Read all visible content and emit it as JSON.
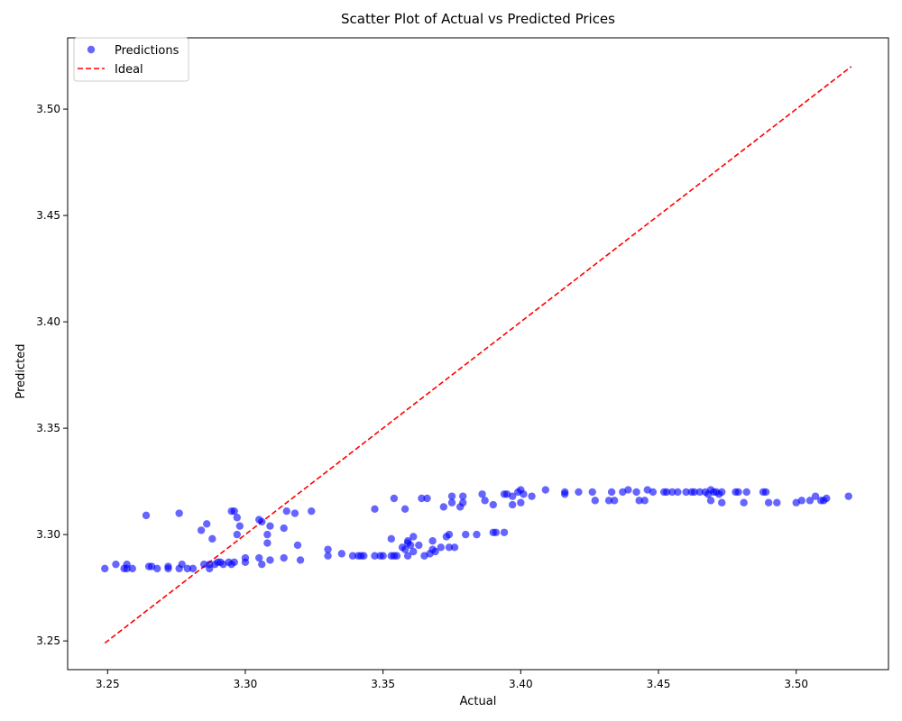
{
  "chart_data": {
    "type": "scatter",
    "title": "Scatter Plot of Actual vs Predicted Prices",
    "xlabel": "Actual",
    "ylabel": "Predicted",
    "xlim": [
      3.2355,
      3.5335
    ],
    "ylim": [
      3.2365,
      3.5335
    ],
    "xticks": [
      3.25,
      3.3,
      3.35,
      3.4,
      3.45,
      3.5
    ],
    "yticks": [
      3.25,
      3.3,
      3.35,
      3.4,
      3.45,
      3.5
    ],
    "grid": false,
    "legend_position": "top-left",
    "series": [
      {
        "name": "Predictions",
        "kind": "scatter",
        "color": "#0000ff",
        "points": [
          [
            3.249,
            3.284
          ],
          [
            3.253,
            3.286
          ],
          [
            3.256,
            3.284
          ],
          [
            3.257,
            3.284
          ],
          [
            3.257,
            3.286
          ],
          [
            3.259,
            3.284
          ],
          [
            3.264,
            3.309
          ],
          [
            3.265,
            3.285
          ],
          [
            3.266,
            3.285
          ],
          [
            3.268,
            3.284
          ],
          [
            3.272,
            3.285
          ],
          [
            3.272,
            3.284
          ],
          [
            3.276,
            3.31
          ],
          [
            3.276,
            3.284
          ],
          [
            3.277,
            3.286
          ],
          [
            3.279,
            3.284
          ],
          [
            3.281,
            3.284
          ],
          [
            3.284,
            3.302
          ],
          [
            3.285,
            3.286
          ],
          [
            3.286,
            3.305
          ],
          [
            3.287,
            3.286
          ],
          [
            3.287,
            3.284
          ],
          [
            3.288,
            3.298
          ],
          [
            3.289,
            3.286
          ],
          [
            3.29,
            3.287
          ],
          [
            3.291,
            3.287
          ],
          [
            3.292,
            3.286
          ],
          [
            3.294,
            3.287
          ],
          [
            3.295,
            3.311
          ],
          [
            3.295,
            3.286
          ],
          [
            3.296,
            3.311
          ],
          [
            3.296,
            3.287
          ],
          [
            3.297,
            3.308
          ],
          [
            3.297,
            3.3
          ],
          [
            3.298,
            3.304
          ],
          [
            3.3,
            3.289
          ],
          [
            3.3,
            3.287
          ],
          [
            3.305,
            3.307
          ],
          [
            3.305,
            3.289
          ],
          [
            3.306,
            3.306
          ],
          [
            3.306,
            3.286
          ],
          [
            3.308,
            3.3
          ],
          [
            3.308,
            3.296
          ],
          [
            3.309,
            3.304
          ],
          [
            3.309,
            3.288
          ],
          [
            3.314,
            3.303
          ],
          [
            3.314,
            3.289
          ],
          [
            3.315,
            3.311
          ],
          [
            3.318,
            3.31
          ],
          [
            3.319,
            3.295
          ],
          [
            3.32,
            3.288
          ],
          [
            3.324,
            3.311
          ],
          [
            3.33,
            3.29
          ],
          [
            3.33,
            3.293
          ],
          [
            3.335,
            3.291
          ],
          [
            3.339,
            3.29
          ],
          [
            3.341,
            3.29
          ],
          [
            3.342,
            3.29
          ],
          [
            3.343,
            3.29
          ],
          [
            3.347,
            3.29
          ],
          [
            3.347,
            3.312
          ],
          [
            3.349,
            3.29
          ],
          [
            3.35,
            3.29
          ],
          [
            3.353,
            3.29
          ],
          [
            3.353,
            3.298
          ],
          [
            3.354,
            3.29
          ],
          [
            3.354,
            3.317
          ],
          [
            3.355,
            3.29
          ],
          [
            3.357,
            3.294
          ],
          [
            3.358,
            3.293
          ],
          [
            3.358,
            3.312
          ],
          [
            3.359,
            3.296
          ],
          [
            3.359,
            3.29
          ],
          [
            3.359,
            3.297
          ],
          [
            3.36,
            3.295
          ],
          [
            3.361,
            3.299
          ],
          [
            3.361,
            3.292
          ],
          [
            3.363,
            3.295
          ],
          [
            3.364,
            3.317
          ],
          [
            3.365,
            3.29
          ],
          [
            3.366,
            3.317
          ],
          [
            3.367,
            3.291
          ],
          [
            3.368,
            3.297
          ],
          [
            3.368,
            3.293
          ],
          [
            3.369,
            3.292
          ],
          [
            3.371,
            3.294
          ],
          [
            3.372,
            3.313
          ],
          [
            3.373,
            3.299
          ],
          [
            3.374,
            3.3
          ],
          [
            3.374,
            3.294
          ],
          [
            3.375,
            3.318
          ],
          [
            3.375,
            3.315
          ],
          [
            3.376,
            3.294
          ],
          [
            3.378,
            3.313
          ],
          [
            3.379,
            3.318
          ],
          [
            3.379,
            3.315
          ],
          [
            3.38,
            3.3
          ],
          [
            3.384,
            3.3
          ],
          [
            3.386,
            3.319
          ],
          [
            3.387,
            3.316
          ],
          [
            3.39,
            3.314
          ],
          [
            3.39,
            3.301
          ],
          [
            3.391,
            3.301
          ],
          [
            3.394,
            3.319
          ],
          [
            3.394,
            3.301
          ],
          [
            3.395,
            3.319
          ],
          [
            3.397,
            3.314
          ],
          [
            3.397,
            3.318
          ],
          [
            3.399,
            3.32
          ],
          [
            3.4,
            3.321
          ],
          [
            3.4,
            3.315
          ],
          [
            3.401,
            3.319
          ],
          [
            3.404,
            3.318
          ],
          [
            3.409,
            3.321
          ],
          [
            3.416,
            3.32
          ],
          [
            3.416,
            3.319
          ],
          [
            3.421,
            3.32
          ],
          [
            3.426,
            3.32
          ],
          [
            3.427,
            3.316
          ],
          [
            3.432,
            3.316
          ],
          [
            3.433,
            3.32
          ],
          [
            3.434,
            3.316
          ],
          [
            3.437,
            3.32
          ],
          [
            3.439,
            3.321
          ],
          [
            3.442,
            3.32
          ],
          [
            3.443,
            3.316
          ],
          [
            3.445,
            3.316
          ],
          [
            3.446,
            3.321
          ],
          [
            3.448,
            3.32
          ],
          [
            3.452,
            3.32
          ],
          [
            3.453,
            3.32
          ],
          [
            3.455,
            3.32
          ],
          [
            3.457,
            3.32
          ],
          [
            3.46,
            3.32
          ],
          [
            3.462,
            3.32
          ],
          [
            3.463,
            3.32
          ],
          [
            3.465,
            3.32
          ],
          [
            3.467,
            3.32
          ],
          [
            3.468,
            3.319
          ],
          [
            3.469,
            3.321
          ],
          [
            3.469,
            3.316
          ],
          [
            3.47,
            3.32
          ],
          [
            3.471,
            3.32
          ],
          [
            3.472,
            3.319
          ],
          [
            3.473,
            3.32
          ],
          [
            3.473,
            3.315
          ],
          [
            3.478,
            3.32
          ],
          [
            3.479,
            3.32
          ],
          [
            3.481,
            3.315
          ],
          [
            3.482,
            3.32
          ],
          [
            3.488,
            3.32
          ],
          [
            3.489,
            3.32
          ],
          [
            3.49,
            3.315
          ],
          [
            3.493,
            3.315
          ],
          [
            3.5,
            3.315
          ],
          [
            3.502,
            3.316
          ],
          [
            3.505,
            3.316
          ],
          [
            3.507,
            3.318
          ],
          [
            3.509,
            3.316
          ],
          [
            3.51,
            3.316
          ],
          [
            3.511,
            3.317
          ],
          [
            3.519,
            3.318
          ]
        ]
      },
      {
        "name": "Ideal",
        "kind": "line",
        "style": "dashed",
        "color": "#ff0000",
        "points": [
          [
            3.249,
            3.249
          ],
          [
            3.52,
            3.52
          ]
        ]
      }
    ]
  }
}
